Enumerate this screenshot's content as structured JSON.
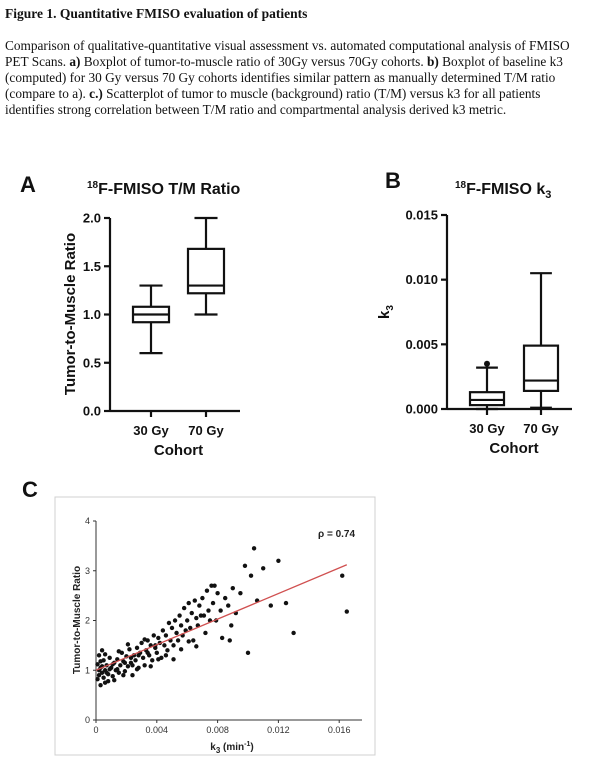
{
  "figure": {
    "title": "Figure 1. Quantitative FMISO evaluation of patients",
    "caption": {
      "intro": "Comparison of qualitative-quantitative visual assessment vs. automated computational analysis of FMISO PET Scans. ",
      "a_label": "a)",
      "a_text": " Boxplot of tumor-to-muscle ratio of 30Gy versus 70Gy cohorts. ",
      "b_label": "b)",
      "b_text": " Boxplot of baseline k3 (computed) for 30 Gy versus 70 Gy cohorts identifies similar pattern as manually determined T/M ratio (compare to a). ",
      "c_label": "c.)",
      "c_text": " Scatterplot of tumor to muscle (background) ratio (T/M) versus k3 for all patients identifies strong correlation between T/M ratio and compartmental analysis derived k3 metric."
    }
  },
  "panels": {
    "a": {
      "letter": "A",
      "title_sup": "18",
      "title_rest": "F-FMISO T/M Ratio"
    },
    "b": {
      "letter": "B",
      "title_sup": "18",
      "title_rest": "F-FMISO k",
      "title_sub": "3"
    },
    "c": {
      "letter": "C"
    }
  },
  "chart_data": [
    {
      "type": "box",
      "panel": "A",
      "xlabel": "Cohort",
      "ylabel": "Tumor-to-Muscle Ratio",
      "ylim": [
        0,
        2.0
      ],
      "yticks": [
        "0.0",
        "0.5",
        "1.0",
        "1.5",
        "2.0"
      ],
      "categories": [
        "30 Gy",
        "70 Gy"
      ],
      "boxes": [
        {
          "min": 0.6,
          "q1": 0.92,
          "median": 1.0,
          "q3": 1.08,
          "max": 1.3,
          "outliers": []
        },
        {
          "min": 1.0,
          "q1": 1.22,
          "median": 1.3,
          "q3": 1.68,
          "max": 2.0,
          "outliers": []
        }
      ]
    },
    {
      "type": "box",
      "panel": "B",
      "xlabel": "Cohort",
      "ylabel_main": "k",
      "ylabel_sub": "3",
      "ylim": [
        0,
        0.015
      ],
      "yticks": [
        "0.000",
        "0.005",
        "0.010",
        "0.015"
      ],
      "categories": [
        "30 Gy",
        "70 Gy"
      ],
      "boxes": [
        {
          "min": 0.0,
          "q1": 0.0003,
          "median": 0.0007,
          "q3": 0.0013,
          "max": 0.0032,
          "outliers": [
            0.0035
          ]
        },
        {
          "min": 0.0001,
          "q1": 0.0014,
          "median": 0.0022,
          "q3": 0.0049,
          "max": 0.0105,
          "outliers": []
        }
      ]
    },
    {
      "type": "scatter",
      "panel": "C",
      "xlabel_main": "k",
      "xlabel_sub": "3",
      "xlabel_unit_pre": " (min",
      "xlabel_unit_sup": "-1",
      "xlabel_unit_post": ")",
      "ylabel": "Tumor-to-Muscle Ratio",
      "annotation": "ρ = 0.74",
      "xlim": [
        0,
        0.0175
      ],
      "ylim": [
        0,
        4
      ],
      "xticks": [
        "0",
        "0.004",
        "0.008",
        "0.012",
        "0.016"
      ],
      "yticks": [
        "0",
        "1",
        "2",
        "3",
        "4"
      ],
      "trendline": {
        "x": [
          0,
          0.0165
        ],
        "y": [
          1.0,
          3.12
        ]
      },
      "points": [
        [
          0.0001,
          0.82
        ],
        [
          0.0002,
          0.9
        ],
        [
          0.0003,
          1.05
        ],
        [
          0.0001,
          1.12
        ],
        [
          0.0004,
          0.95
        ],
        [
          0.0005,
          1.2
        ],
        [
          0.0002,
          1.3
        ],
        [
          0.0006,
          1.0
        ],
        [
          0.0003,
          0.7
        ],
        [
          0.0007,
          1.1
        ],
        [
          0.0005,
          0.85
        ],
        [
          0.0008,
          0.92
        ],
        [
          0.0009,
          1.25
        ],
        [
          0.0004,
          1.4
        ],
        [
          0.001,
          1.05
        ],
        [
          0.0011,
          0.88
        ],
        [
          0.0012,
          1.15
        ],
        [
          0.0006,
          1.32
        ],
        [
          0.0013,
          1.0
        ],
        [
          0.0014,
          1.22
        ],
        [
          0.0015,
          0.95
        ],
        [
          0.0016,
          1.1
        ],
        [
          0.0008,
          0.78
        ],
        [
          0.0017,
          1.35
        ],
        [
          0.0018,
          1.18
        ],
        [
          0.0019,
          0.98
        ],
        [
          0.002,
          1.28
        ],
        [
          0.0021,
          1.08
        ],
        [
          0.0022,
          1.42
        ],
        [
          0.0023,
          1.15
        ],
        [
          0.0024,
          0.9
        ],
        [
          0.0025,
          1.3
        ],
        [
          0.0026,
          1.2
        ],
        [
          0.0027,
          1.45
        ],
        [
          0.0028,
          1.05
        ],
        [
          0.0029,
          1.35
        ],
        [
          0.003,
          1.55
        ],
        [
          0.0031,
          1.25
        ],
        [
          0.0032,
          1.1
        ],
        [
          0.0033,
          1.4
        ],
        [
          0.0034,
          1.6
        ],
        [
          0.0035,
          1.3
        ],
        [
          0.0036,
          1.5
        ],
        [
          0.0037,
          1.2
        ],
        [
          0.0038,
          1.7
        ],
        [
          0.0039,
          1.45
        ],
        [
          0.004,
          1.35
        ],
        [
          0.0041,
          1.65
        ],
        [
          0.0042,
          1.55
        ],
        [
          0.0043,
          1.25
        ],
        [
          0.0044,
          1.8
        ],
        [
          0.0045,
          1.5
        ],
        [
          0.0046,
          1.7
        ],
        [
          0.0047,
          1.4
        ],
        [
          0.0048,
          1.95
        ],
        [
          0.0049,
          1.6
        ],
        [
          0.005,
          1.85
        ],
        [
          0.0051,
          1.5
        ],
        [
          0.0052,
          2.0
        ],
        [
          0.0053,
          1.75
        ],
        [
          0.0054,
          1.6
        ],
        [
          0.0055,
          2.1
        ],
        [
          0.0056,
          1.9
        ],
        [
          0.0057,
          1.7
        ],
        [
          0.0058,
          2.25
        ],
        [
          0.0059,
          1.8
        ],
        [
          0.006,
          2.0
        ],
        [
          0.0061,
          2.35
        ],
        [
          0.0062,
          1.85
        ],
        [
          0.0063,
          2.15
        ],
        [
          0.0064,
          1.6
        ],
        [
          0.0065,
          2.4
        ],
        [
          0.0066,
          2.05
        ],
        [
          0.0067,
          1.9
        ],
        [
          0.0068,
          2.3
        ],
        [
          0.007,
          2.45
        ],
        [
          0.0071,
          2.1
        ],
        [
          0.0072,
          1.75
        ],
        [
          0.0073,
          2.6
        ],
        [
          0.0074,
          2.2
        ],
        [
          0.0075,
          2.0
        ],
        [
          0.0076,
          2.7
        ],
        [
          0.0077,
          2.35
        ],
        [
          0.0078,
          2.7
        ],
        [
          0.008,
          2.55
        ],
        [
          0.0082,
          2.2
        ],
        [
          0.0083,
          1.65
        ],
        [
          0.0085,
          2.45
        ],
        [
          0.0087,
          2.3
        ],
        [
          0.0089,
          1.9
        ],
        [
          0.009,
          2.65
        ],
        [
          0.0092,
          2.15
        ],
        [
          0.0095,
          2.55
        ],
        [
          0.0098,
          3.1
        ],
        [
          0.01,
          1.35
        ],
        [
          0.0102,
          2.9
        ],
        [
          0.0104,
          3.45
        ],
        [
          0.0106,
          2.4
        ],
        [
          0.011,
          3.05
        ],
        [
          0.0115,
          2.3
        ],
        [
          0.012,
          3.2
        ],
        [
          0.0125,
          2.35
        ],
        [
          0.013,
          1.75
        ],
        [
          0.0162,
          2.9
        ],
        [
          0.0165,
          2.18
        ],
        [
          0.0003,
          1.18
        ],
        [
          0.0006,
          0.75
        ],
        [
          0.0009,
          1.02
        ],
        [
          0.0012,
          0.8
        ],
        [
          0.0015,
          1.38
        ],
        [
          0.0018,
          0.9
        ],
        [
          0.0021,
          1.52
        ],
        [
          0.0024,
          1.1
        ],
        [
          0.0027,
          1.02
        ],
        [
          0.0032,
          1.62
        ],
        [
          0.0036,
          1.08
        ],
        [
          0.0041,
          1.22
        ],
        [
          0.0046,
          1.3
        ],
        [
          0.0051,
          1.22
        ],
        [
          0.0056,
          1.42
        ],
        [
          0.0061,
          1.58
        ],
        [
          0.0066,
          1.48
        ],
        [
          0.0069,
          2.1
        ],
        [
          0.0079,
          2.0
        ],
        [
          0.0088,
          1.6
        ],
        [
          0.0002,
          1.0
        ],
        [
          0.0004,
          1.08
        ],
        [
          0.0007,
          0.95
        ],
        [
          0.0011,
          1.12
        ],
        [
          0.0014,
          1.02
        ],
        [
          0.0019,
          1.15
        ],
        [
          0.0023,
          1.25
        ],
        [
          0.0028,
          1.3
        ],
        [
          0.0034,
          1.35
        ],
        [
          0.0039,
          1.5
        ]
      ]
    }
  ]
}
